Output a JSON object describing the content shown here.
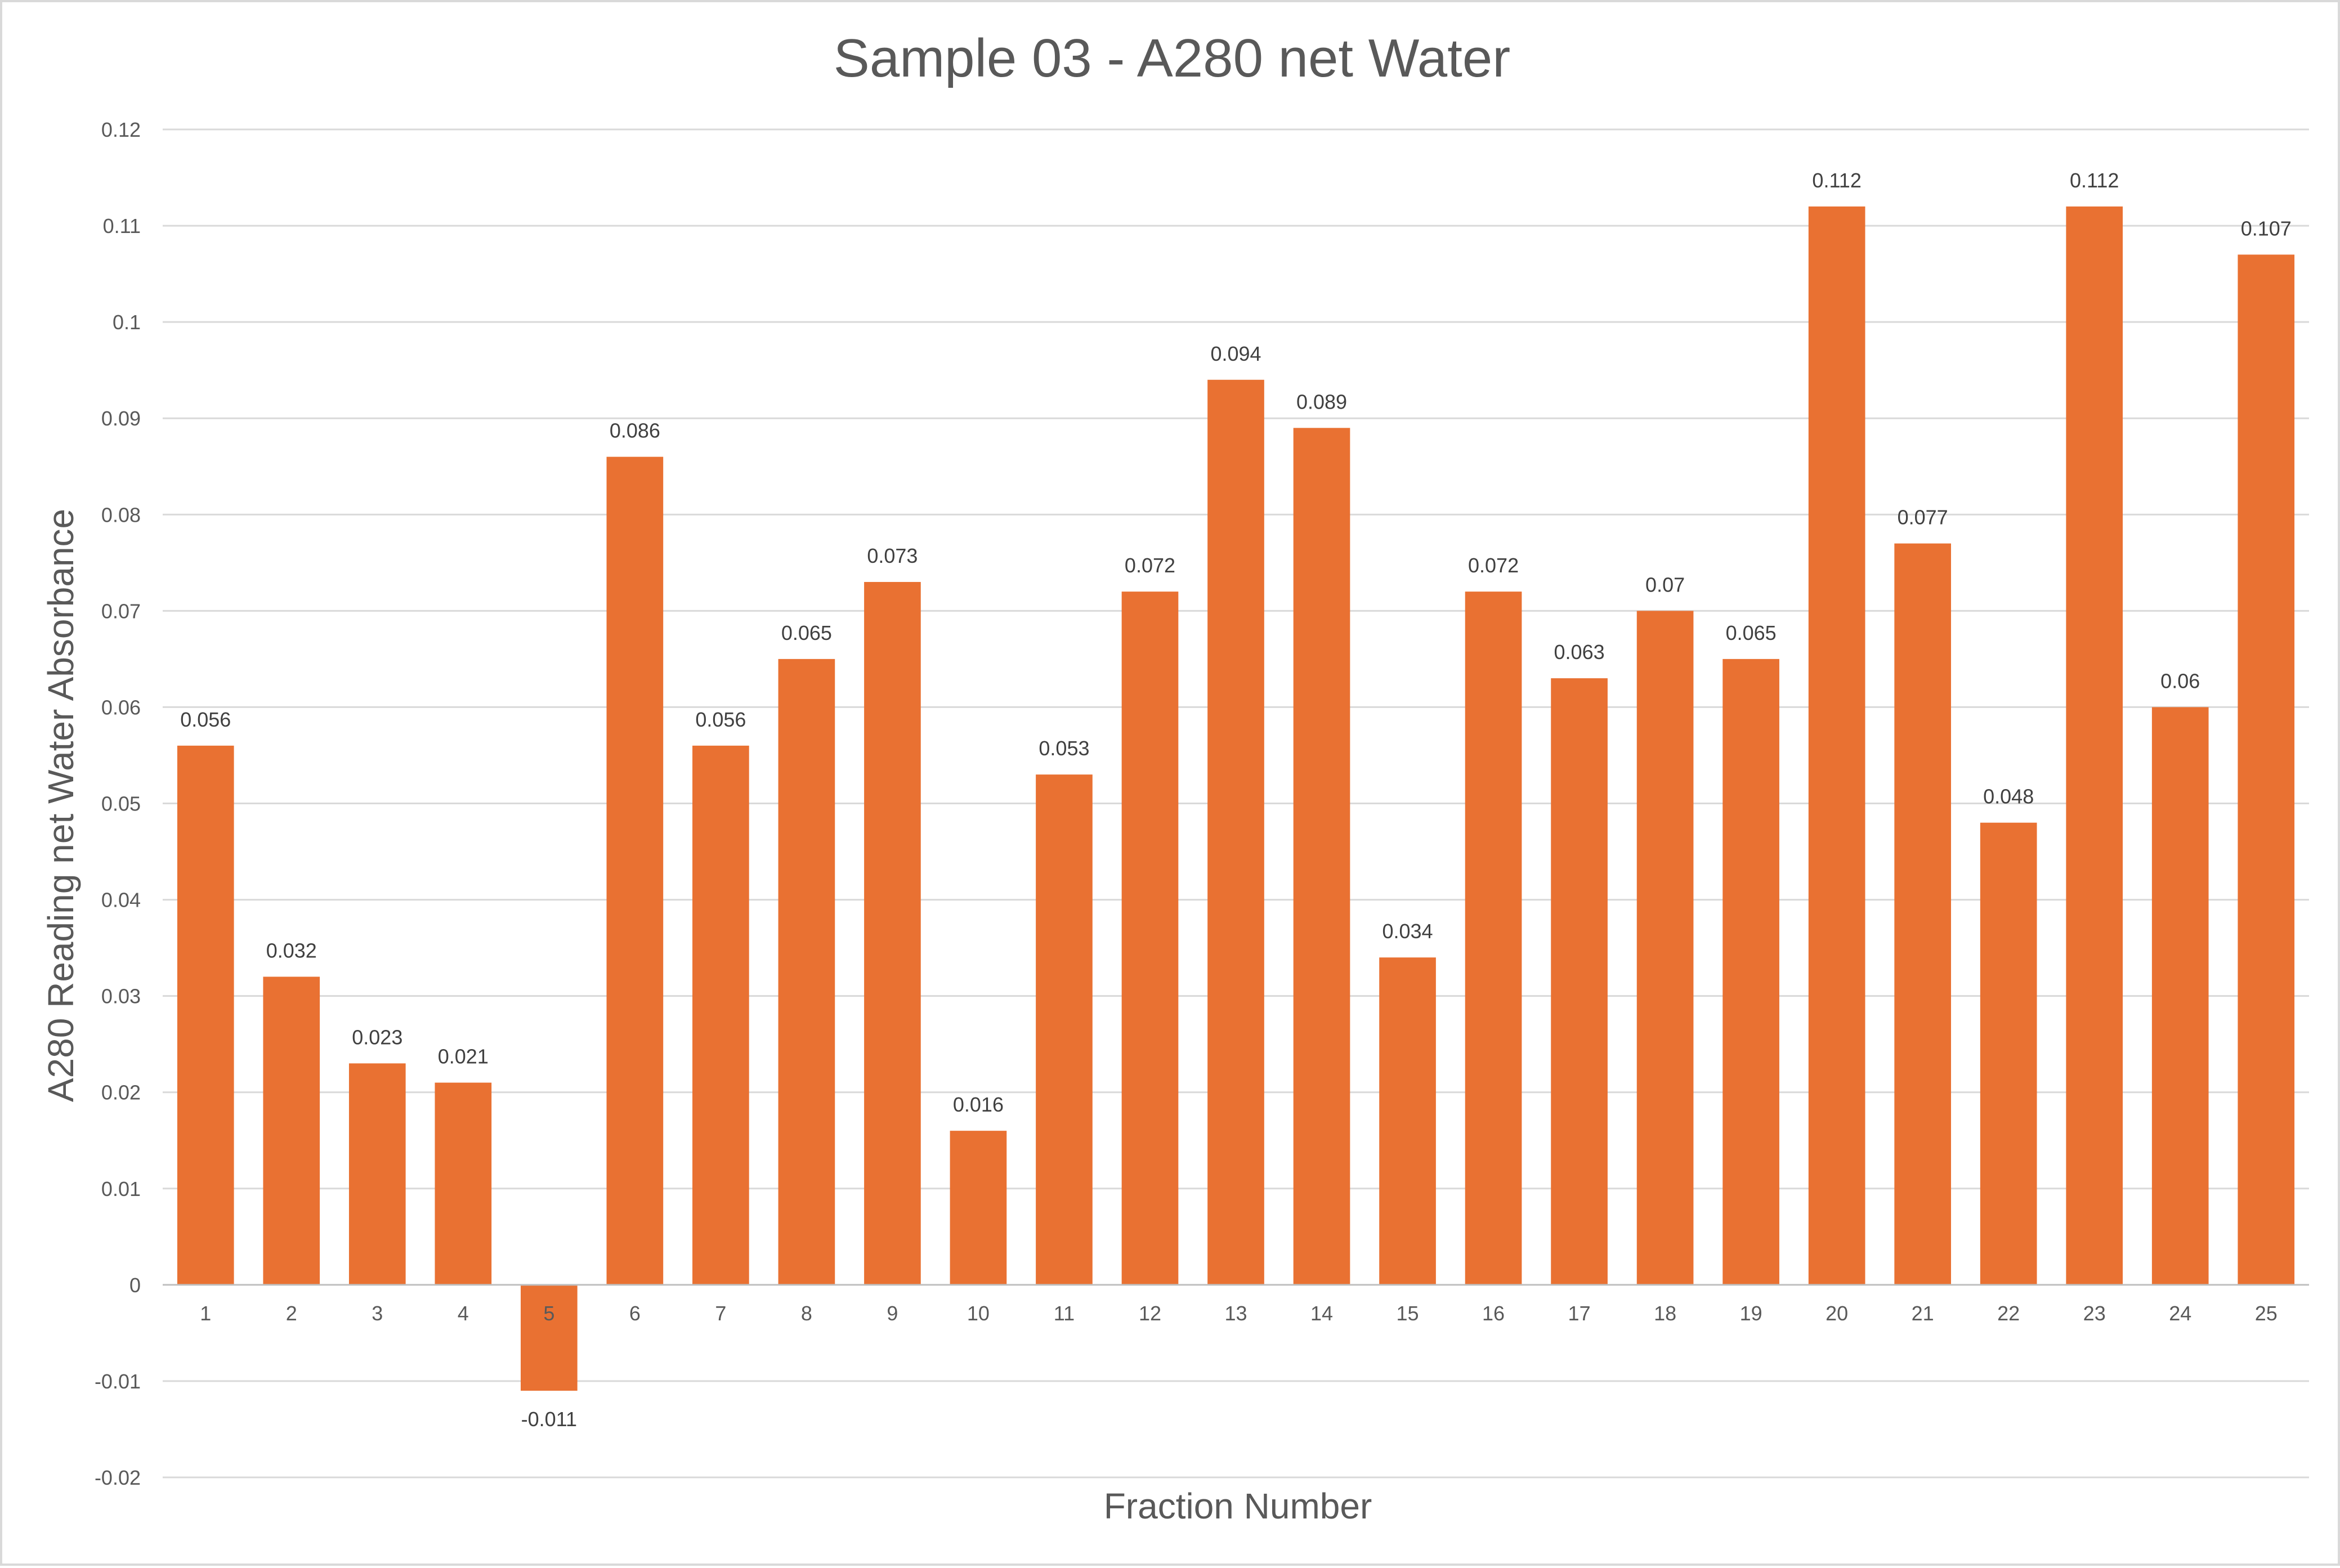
{
  "chart_data": {
    "type": "bar",
    "title": "Sample 03 - A280 net Water",
    "xlabel": "Fraction Number",
    "ylabel": "A280 Reading net Water Absorbance",
    "categories": [
      "1",
      "2",
      "3",
      "4",
      "5",
      "6",
      "7",
      "8",
      "9",
      "10",
      "11",
      "12",
      "13",
      "14",
      "15",
      "16",
      "17",
      "18",
      "19",
      "20",
      "21",
      "22",
      "23",
      "24",
      "25"
    ],
    "values": [
      0.056,
      0.032,
      0.023,
      0.021,
      -0.011,
      0.086,
      0.056,
      0.065,
      0.073,
      0.016,
      0.053,
      0.072,
      0.094,
      0.089,
      0.034,
      0.072,
      0.063,
      0.07,
      0.065,
      0.112,
      0.077,
      0.048,
      0.112,
      0.06,
      0.107
    ],
    "data_labels": [
      "0.056",
      "0.032",
      "0.023",
      "0.021",
      "-0.011",
      "0.086",
      "0.056",
      "0.065",
      "0.073",
      "0.016",
      "0.053",
      "0.072",
      "0.094",
      "0.089",
      "0.034",
      "0.072",
      "0.063",
      "0.07",
      "0.065",
      "0.112",
      "0.077",
      "0.048",
      "0.112",
      "0.06",
      "0.107"
    ],
    "ylim": [
      -0.02,
      0.12
    ],
    "yticks": [
      -0.02,
      -0.01,
      0,
      0.01,
      0.02,
      0.03,
      0.04,
      0.05,
      0.06,
      0.07,
      0.08,
      0.09,
      0.1,
      0.11,
      0.12
    ],
    "ytick_labels": [
      "-0.02",
      "-0.01",
      "0",
      "0.01",
      "0.02",
      "0.03",
      "0.04",
      "0.05",
      "0.06",
      "0.07",
      "0.08",
      "0.09",
      "0.1",
      "0.11",
      "0.12"
    ],
    "grid": true,
    "legend": "none",
    "bar_color": "#E97132"
  }
}
